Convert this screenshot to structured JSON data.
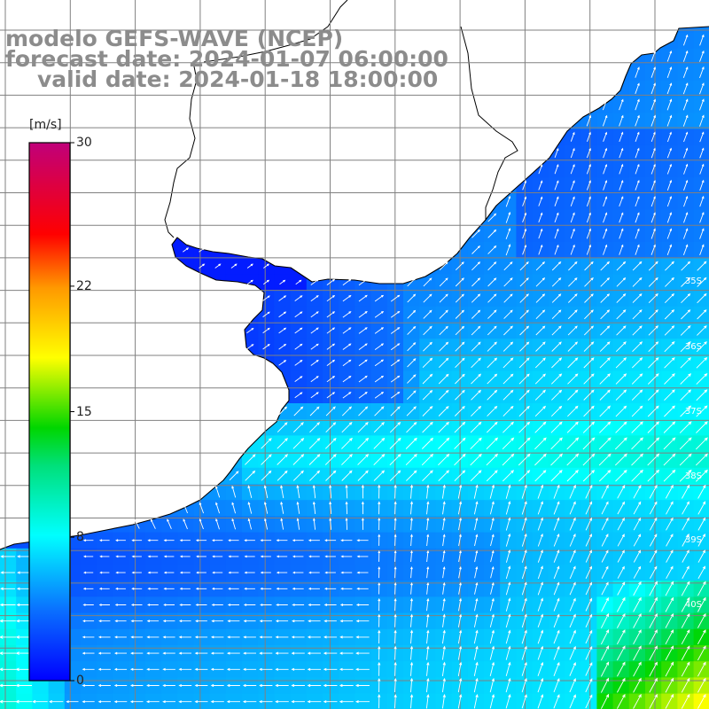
{
  "title": {
    "line1": "modelo GEFS-WAVE (NCEP)",
    "line2": "forecast date: 2024-01-07 06:00:00",
    "line3": "valid date: 2024-01-18 18:00:00"
  },
  "colorbar": {
    "unit": "[m/s]",
    "ticks": [
      {
        "value": 30,
        "label": "30"
      },
      {
        "value": 22,
        "label": "22"
      },
      {
        "value": 15,
        "label": "15"
      },
      {
        "value": 8,
        "label": "8"
      },
      {
        "value": 0,
        "label": "0"
      }
    ],
    "range": [
      0,
      30
    ]
  },
  "map": {
    "latitude_labels": [
      "35S",
      "36S",
      "37S",
      "38S",
      "39S",
      "40S"
    ],
    "longitude_labels": [
      "",
      "",
      "",
      "",
      "",
      "",
      "",
      "",
      "",
      "",
      ""
    ],
    "colors": {
      "land": "#ffffff",
      "coastline": "#000000",
      "grid": "#808080",
      "vectors": "#ffffff",
      "title": "#8c8c8c"
    }
  }
}
